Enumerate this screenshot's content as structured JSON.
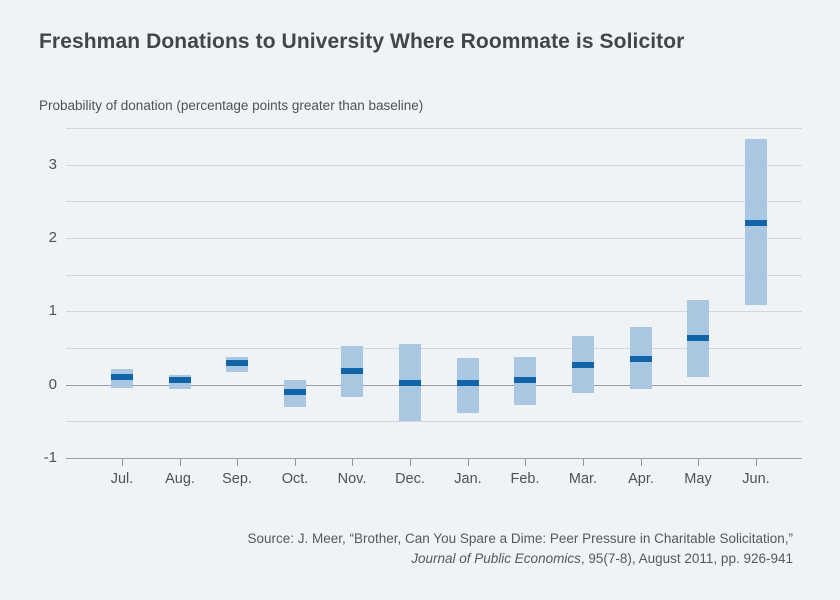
{
  "header": {
    "title": "Freshman Donations to University Where Roommate is Solicitor"
  },
  "chart_data": {
    "type": "bar",
    "subtype": "floating-range-bars-with-point-estimate",
    "title": "Freshman Donations to University Where Roommate is Solicitor",
    "ylabel": "Probability of donation (percentage points greater than baseline)",
    "xlabel": "",
    "categories": [
      "Jul.",
      "Aug.",
      "Sep.",
      "Oct.",
      "Nov.",
      "Dec.",
      "Jan.",
      "Feb.",
      "Mar.",
      "Apr.",
      "May",
      "Jun."
    ],
    "series": [
      {
        "name": "point estimate",
        "values": [
          0.11,
          0.06,
          0.3,
          -0.1,
          0.18,
          0.02,
          0.02,
          0.07,
          0.27,
          0.35,
          0.63,
          2.21
        ]
      },
      {
        "name": "interval low",
        "values": [
          -0.04,
          -0.06,
          0.17,
          -0.31,
          -0.16,
          -0.5,
          -0.38,
          -0.28,
          -0.12,
          -0.07,
          0.1,
          1.08
        ]
      },
      {
        "name": "interval high",
        "values": [
          0.22,
          0.13,
          0.38,
          0.06,
          0.53,
          0.55,
          0.37,
          0.38,
          0.66,
          0.78,
          1.15,
          3.35
        ]
      }
    ],
    "ylim": [
      -1,
      3.5
    ],
    "yticks": [
      3,
      2,
      1,
      0,
      -1
    ],
    "gridline_step": 0.5,
    "grid": true,
    "legend": false,
    "colors": {
      "background": "#eff3f6",
      "bar_fill": "#a9c7e0",
      "estimate_line": "#0f65a8",
      "gridline": "#d3d7dc",
      "axis_line": "#989ea4",
      "tick_mark": "#8f959b",
      "title_text": "#41464b",
      "label_text": "#4d5257"
    }
  },
  "source": {
    "line1": "Source: J. Meer, “Brother, Can You Spare a Dime: Peer Pressure in Charitable Solicitation,”",
    "journal": "Journal of Public Economics",
    "line2_rest": ", 95(7-8), August 2011, pp. 926-941"
  }
}
